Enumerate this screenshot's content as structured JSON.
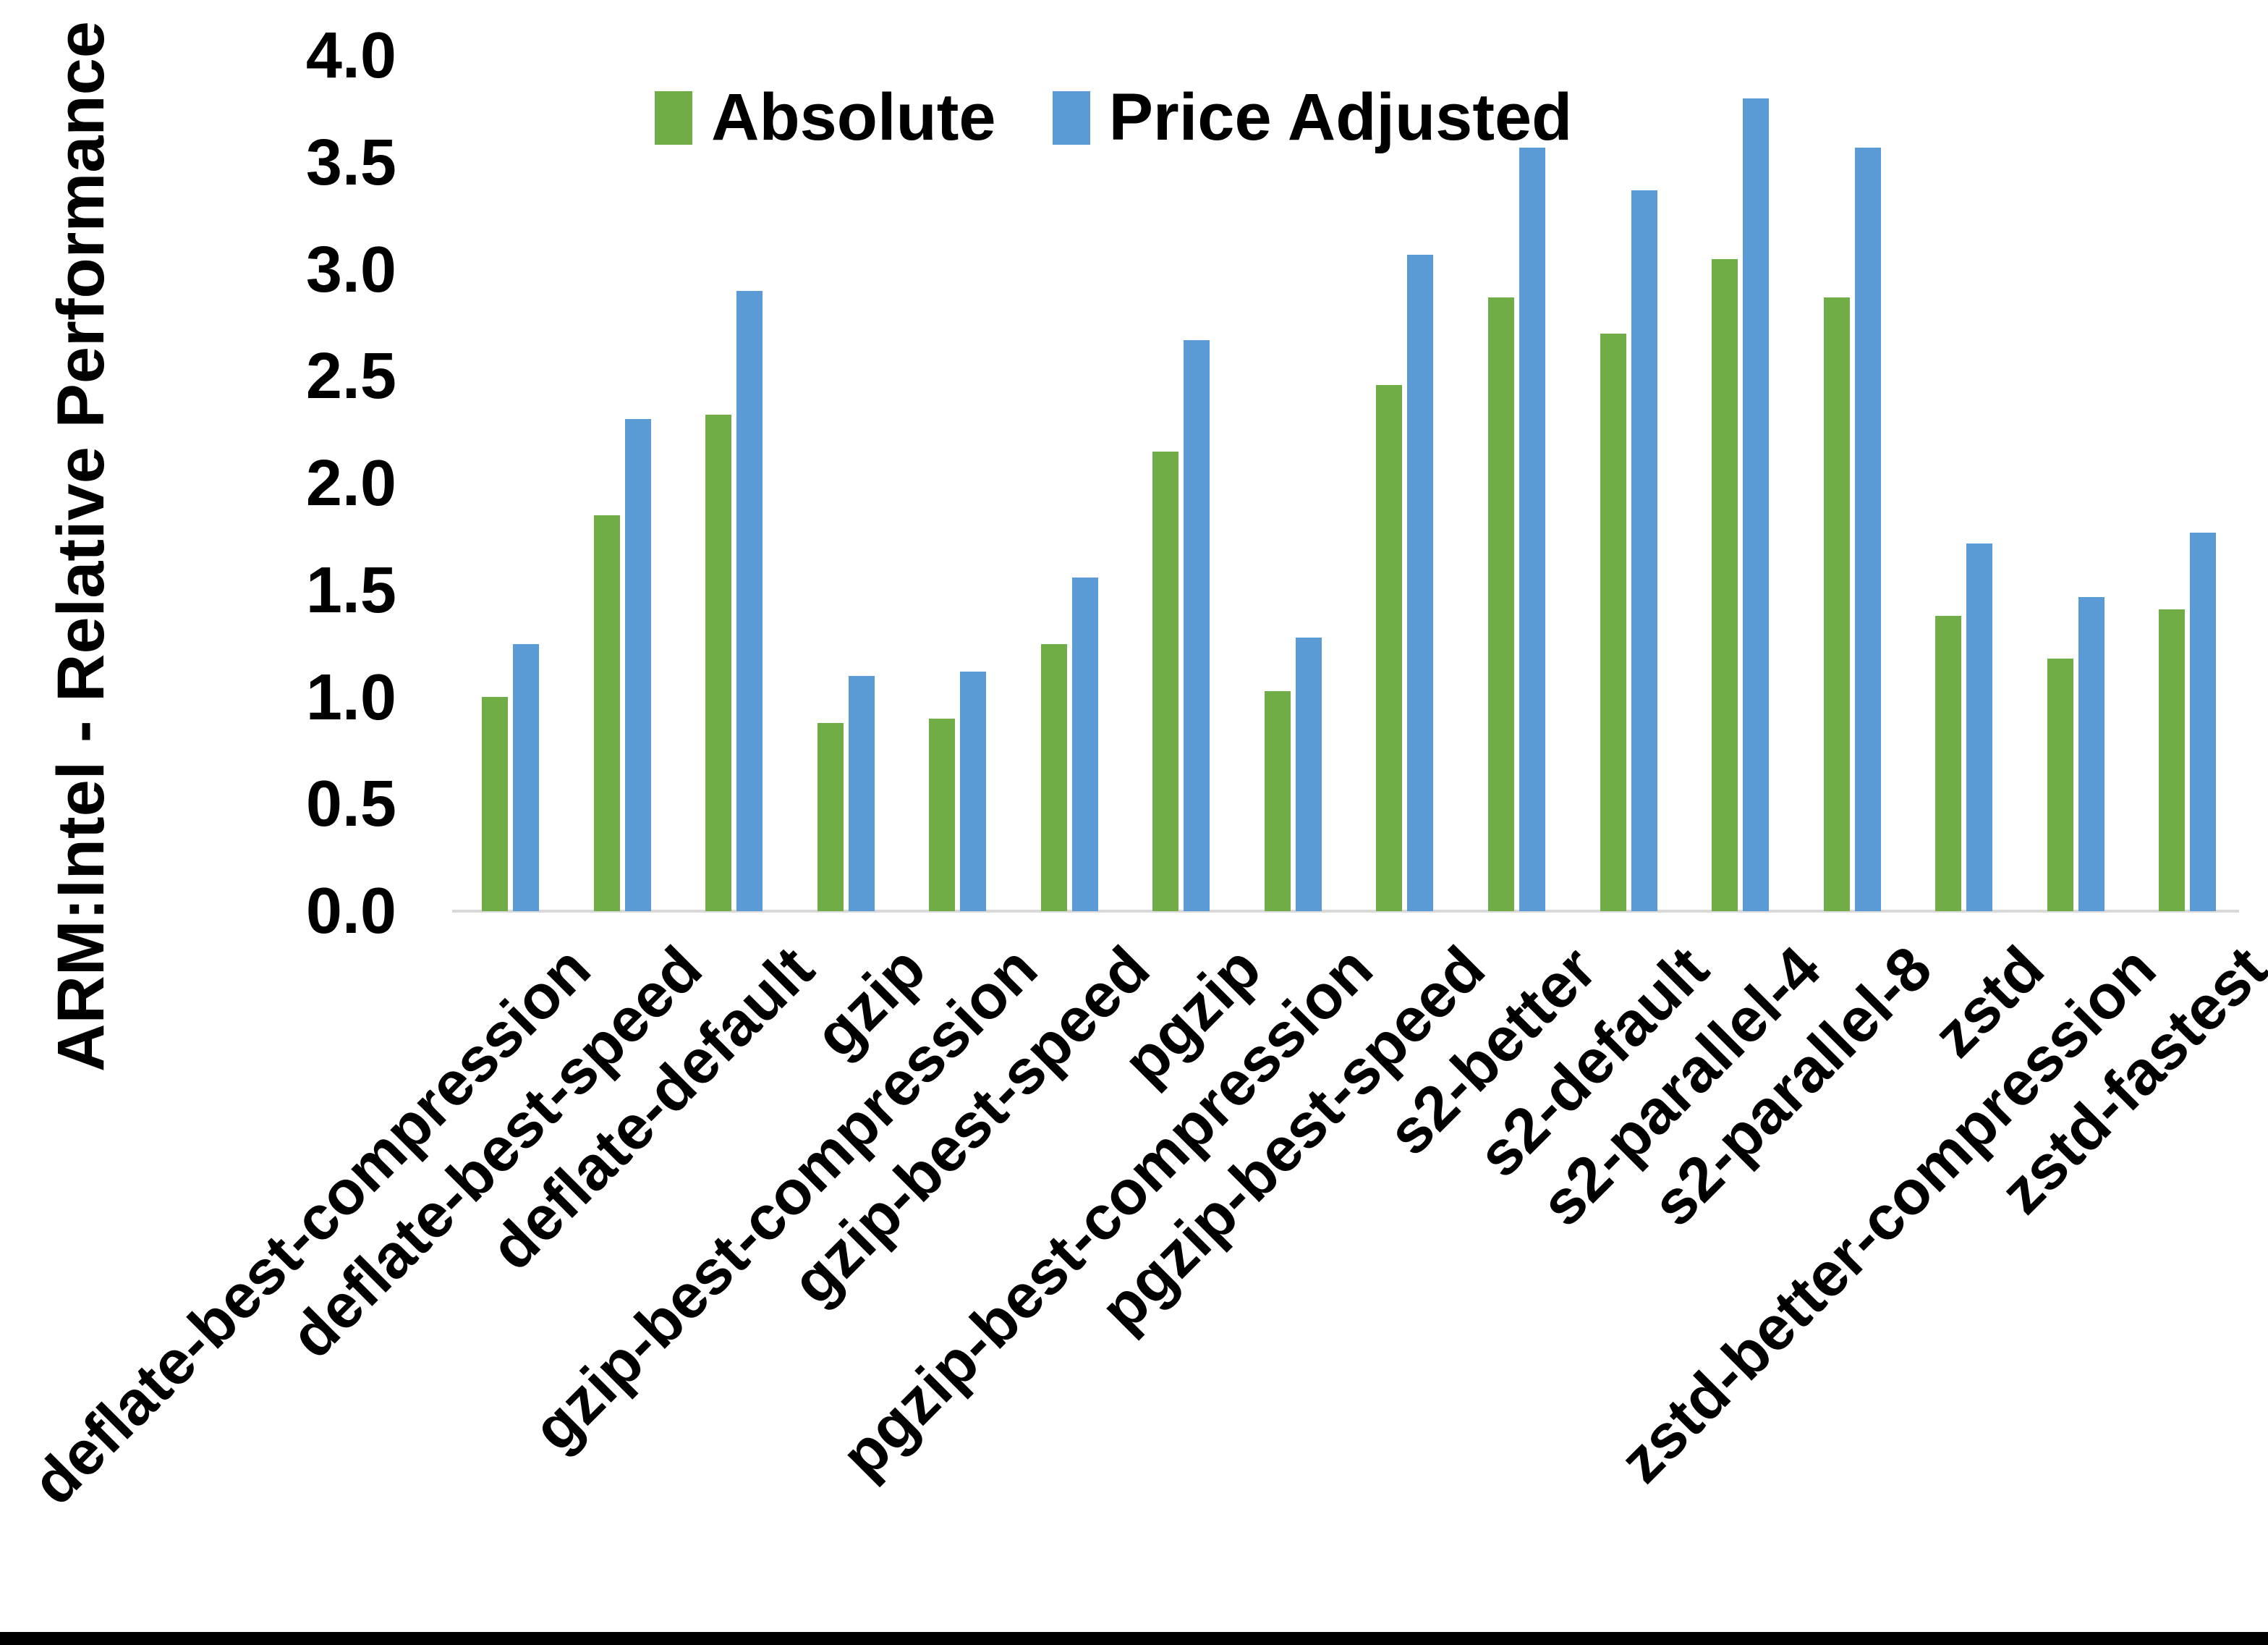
{
  "figure": {
    "background": "#ffffff",
    "bottom_border_color": "#000000"
  },
  "chart_data": {
    "type": "bar",
    "title": "",
    "ylabel": "ARM:Intel - Relative Performance",
    "xlabel": "",
    "ylim": [
      0.0,
      4.0
    ],
    "ytick_step": 0.5,
    "ytick_labels": [
      "4.0",
      "3.5",
      "3.0",
      "2.5",
      "2.0",
      "1.5",
      "1.0",
      "0.5",
      "0.0"
    ],
    "grid": false,
    "legend_position": "top-center",
    "axis_line_color": "#D9D9D9",
    "text_color": "#000000",
    "categories": [
      "deflate-best-compression",
      "deflate-best-speed",
      "deflate-default",
      "gzip",
      "gzip-best-compression",
      "gzip-best-speed",
      "pgzip",
      "pgzip-best-compression",
      "pgzip-best-speed",
      "s2-better",
      "s2-default",
      "s2-parallel-4",
      "s2-parallel-8",
      "zstd",
      "zstd-better-compression",
      "zstd-fastest"
    ],
    "series": [
      {
        "name": "Absolute",
        "color": "#70AD47",
        "values": [
          1.0,
          1.85,
          2.32,
          0.88,
          0.9,
          1.25,
          2.15,
          1.03,
          2.46,
          2.87,
          2.7,
          3.05,
          2.87,
          1.38,
          1.18,
          1.41
        ]
      },
      {
        "name": "Price Adjusted",
        "color": "#5B9BD5",
        "values": [
          1.25,
          2.3,
          2.9,
          1.1,
          1.12,
          1.56,
          2.67,
          1.28,
          3.07,
          3.57,
          3.37,
          3.8,
          3.57,
          1.72,
          1.47,
          1.77
        ]
      }
    ]
  }
}
